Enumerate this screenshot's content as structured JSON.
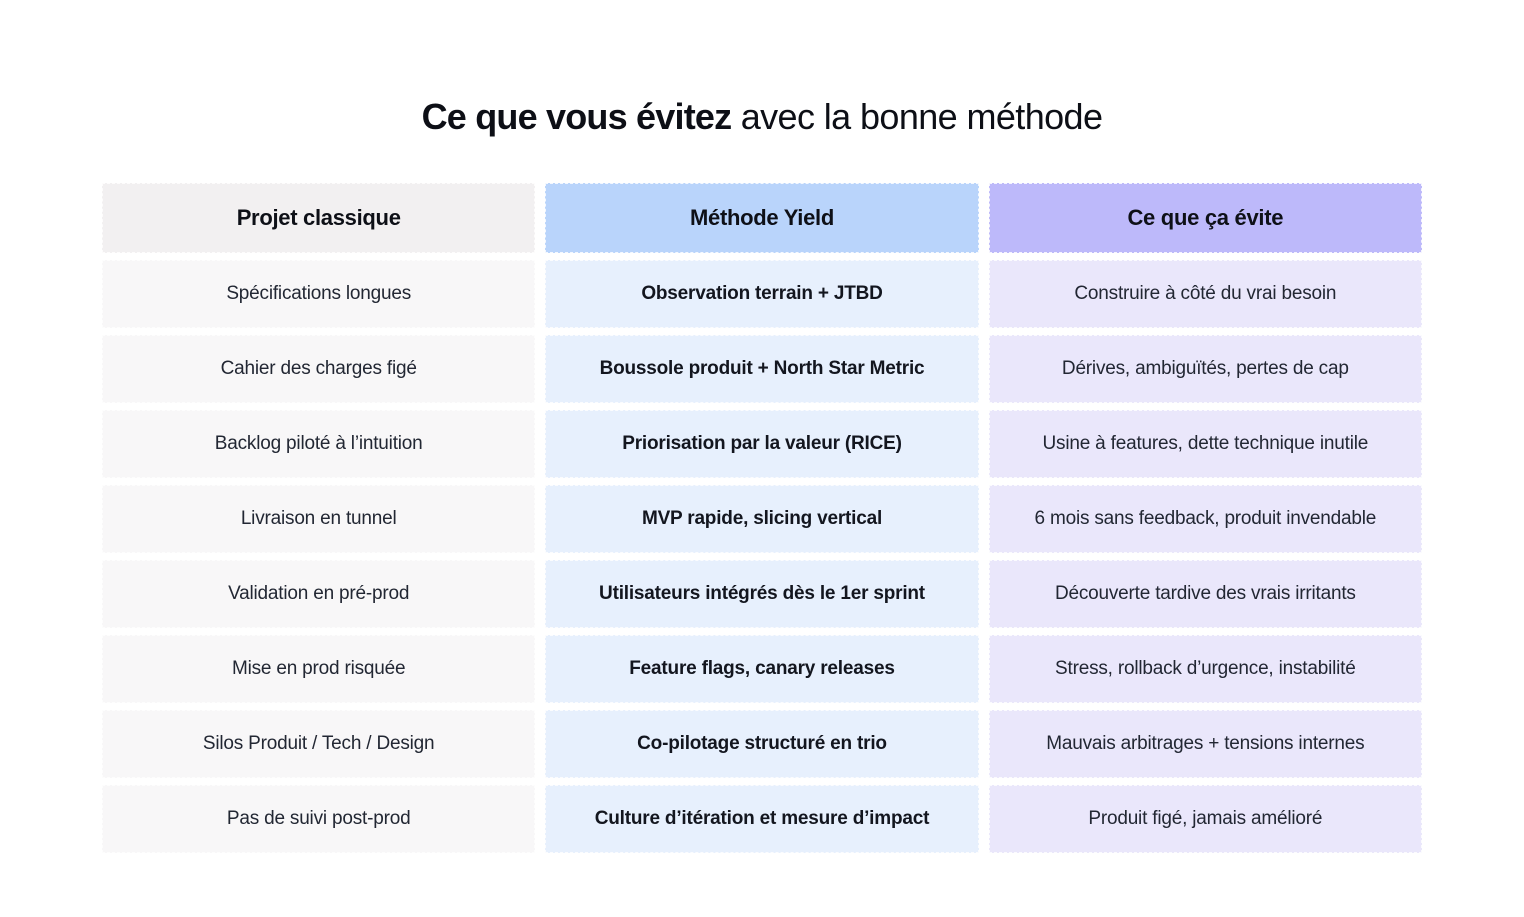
{
  "title": {
    "bold": "Ce que vous évitez",
    "regular": "avec la bonne méthode"
  },
  "colors": {
    "header_gray": "#f2f0f1",
    "header_blue": "#b9d4fb",
    "header_purple": "#bdb9fa",
    "cell_gray": "#f8f7f8",
    "cell_blue": "#e7f0fd",
    "cell_purple": "#eae7fb",
    "text_dark": "#0e1017",
    "text_body": "#222733"
  },
  "chart_data": {
    "type": "table",
    "title": "Ce que vous évitez avec la bonne méthode",
    "columns": [
      "Projet classique",
      "Méthode Yield",
      "Ce que ça évite"
    ],
    "rows": [
      [
        "Spécifications longues",
        "Observation terrain + JTBD",
        "Construire à côté du vrai besoin"
      ],
      [
        "Cahier des charges figé",
        "Boussole produit + North Star Metric",
        "Dérives, ambiguïtés, pertes de cap"
      ],
      [
        "Backlog piloté à l’intuition",
        "Priorisation par la valeur (RICE)",
        "Usine à features, dette technique inutile"
      ],
      [
        "Livraison en tunnel",
        "MVP rapide, slicing vertical",
        "6 mois sans feedback, produit invendable"
      ],
      [
        "Validation en pré-prod",
        "Utilisateurs intégrés dès le 1er sprint",
        "Découverte tardive des vrais irritants"
      ],
      [
        "Mise en prod risquée",
        "Feature flags, canary releases",
        "Stress, rollback d’urgence, instabilité"
      ],
      [
        "Silos Produit / Tech / Design",
        "Co-pilotage structuré en trio",
        "Mauvais arbitrages + tensions internes"
      ],
      [
        "Pas de suivi post-prod",
        "Culture d’itération et mesure d’impact",
        "Produit figé, jamais amélioré"
      ]
    ]
  }
}
